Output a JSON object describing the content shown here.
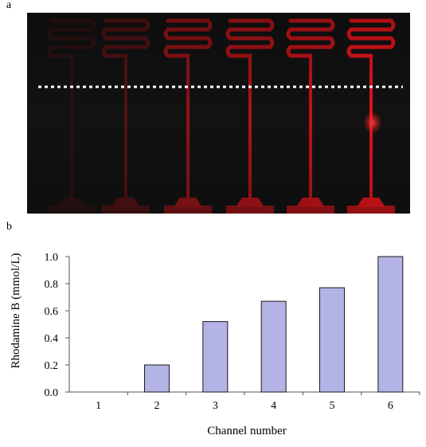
{
  "panels": {
    "a": "a",
    "b": "b"
  },
  "photo": {
    "channel_intensities": [
      0.12,
      0.3,
      0.62,
      0.75,
      0.85,
      1.0
    ],
    "line_color": "#ffffff",
    "fluorescence_color": "#e0141a"
  },
  "chart_data": {
    "type": "bar",
    "categories": [
      "1",
      "2",
      "3",
      "4",
      "5",
      "6"
    ],
    "values": [
      0.0,
      0.2,
      0.52,
      0.67,
      0.77,
      1.0
    ],
    "xlabel": "Channel number",
    "ylabel": "Rhodamine B (mmol/L)",
    "ylim": [
      0,
      1.0
    ],
    "yticks": [
      "0.0",
      "0.2",
      "0.4",
      "0.6",
      "0.8",
      "1.0"
    ],
    "bar_color": "#b3b3e6",
    "bar_edge_color": "#1a1a1a",
    "grid": false
  }
}
